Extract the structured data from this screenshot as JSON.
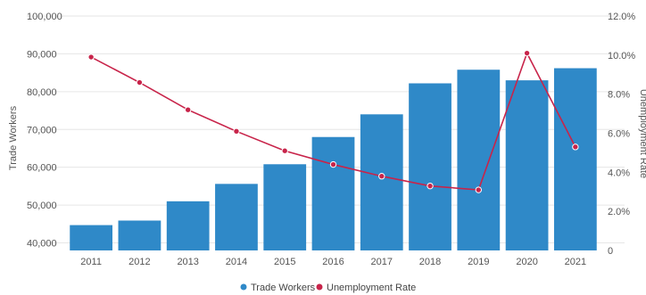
{
  "chart_data": {
    "type": "bar",
    "categories": [
      "2011",
      "2012",
      "2013",
      "2014",
      "2015",
      "2016",
      "2017",
      "2018",
      "2019",
      "2020",
      "2021"
    ],
    "series": [
      {
        "name": "Trade Workers",
        "type": "bar",
        "axis": "left",
        "color": "#2f89c8",
        "values": [
          44700,
          45900,
          51000,
          55600,
          60800,
          68000,
          74000,
          82200,
          85800,
          83000,
          86200
        ]
      },
      {
        "name": "Unemployment Rate",
        "type": "line",
        "axis": "right",
        "color": "#c8244a",
        "values": [
          9.9,
          8.6,
          7.2,
          6.1,
          5.1,
          4.4,
          3.8,
          3.3,
          3.1,
          10.1,
          5.3
        ]
      }
    ],
    "y_left": {
      "label": "Trade Workers",
      "ylim": [
        38000,
        100000
      ],
      "ticks": [
        40000,
        50000,
        60000,
        70000,
        80000,
        90000,
        100000
      ],
      "tick_labels": [
        "40,000",
        "50,000",
        "60,000",
        "70,000",
        "80,000",
        "90,000",
        "100,000"
      ]
    },
    "y_right": {
      "label": "Unemployment Rate",
      "ylim": [
        0,
        12
      ],
      "ticks": [
        0,
        2,
        4,
        6,
        8,
        10,
        12
      ],
      "tick_labels": [
        "0",
        "2.0%",
        "4.0%",
        "6.0%",
        "8.0%",
        "10.0%",
        "12.0%"
      ]
    },
    "grid": true,
    "legend": "bottom-center",
    "legend_labels": [
      "Trade Workers",
      "Unemployment Rate"
    ]
  }
}
